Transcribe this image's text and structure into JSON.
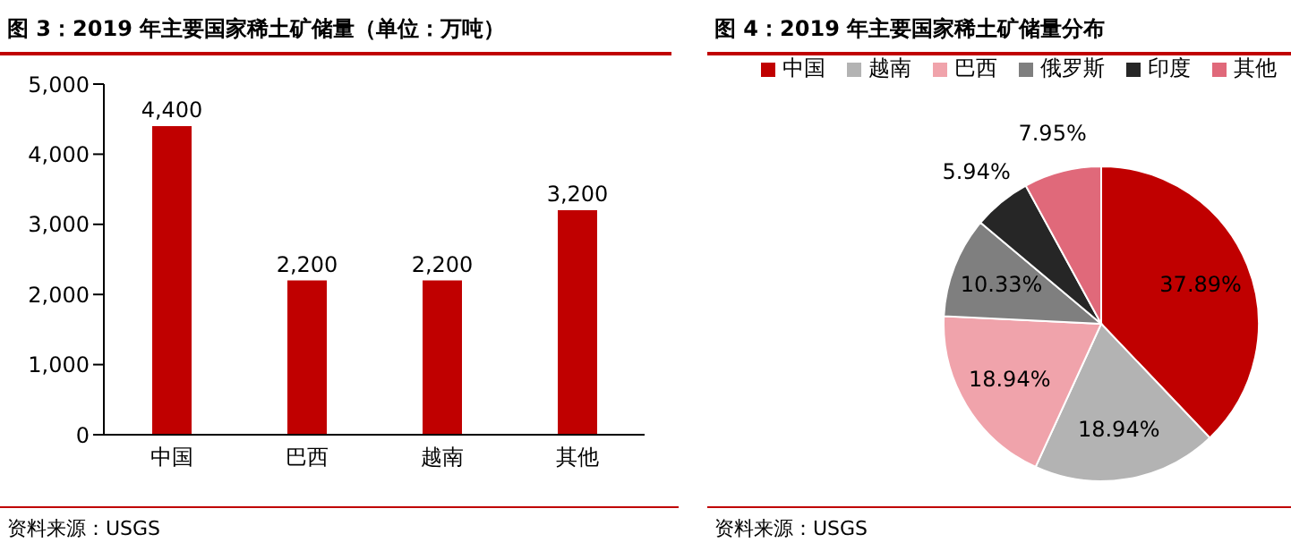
{
  "chart_data": [
    {
      "type": "bar",
      "title": "图 3：2019 年主要国家稀土矿储量（单位：万吨）",
      "categories": [
        "中国",
        "巴西",
        "越南",
        "其他"
      ],
      "values": [
        4400,
        2200,
        2200,
        3200
      ],
      "color": "#c00000",
      "value_labels": [
        "4,400",
        "2,200",
        "2,200",
        "3,200"
      ],
      "ylim": [
        0,
        5000
      ],
      "yticks": [
        0,
        {
          "value": 1000,
          "label": "1,000"
        },
        {
          "value": 2000,
          "label": "2,000"
        },
        {
          "value": 3000,
          "label": "3,000"
        },
        {
          "value": 4000,
          "label": "4,000"
        },
        {
          "value": 5000,
          "label": "5,000"
        }
      ],
      "annotations": [
        "资料来源：USGS"
      ]
    },
    {
      "type": "pie",
      "title": "图 4：2019 年主要国家稀土矿储量分布",
      "categories": [
        "中国",
        "越南",
        "巴西",
        "俄罗斯",
        "印度",
        "其他"
      ],
      "values": [
        37.89,
        18.94,
        18.94,
        10.33,
        5.94,
        7.95
      ],
      "colors": [
        "#c00000",
        "#b3b3b3",
        "#f0a3ab",
        "#7f7f7f",
        "#262626",
        "#e0697a"
      ],
      "value_labels": [
        "37.89%",
        "18.94%",
        "18.94%",
        "10.33%",
        "5.94%",
        "7.95%"
      ],
      "legend": "top",
      "annotations": [
        "资料来源：USGS"
      ]
    }
  ]
}
